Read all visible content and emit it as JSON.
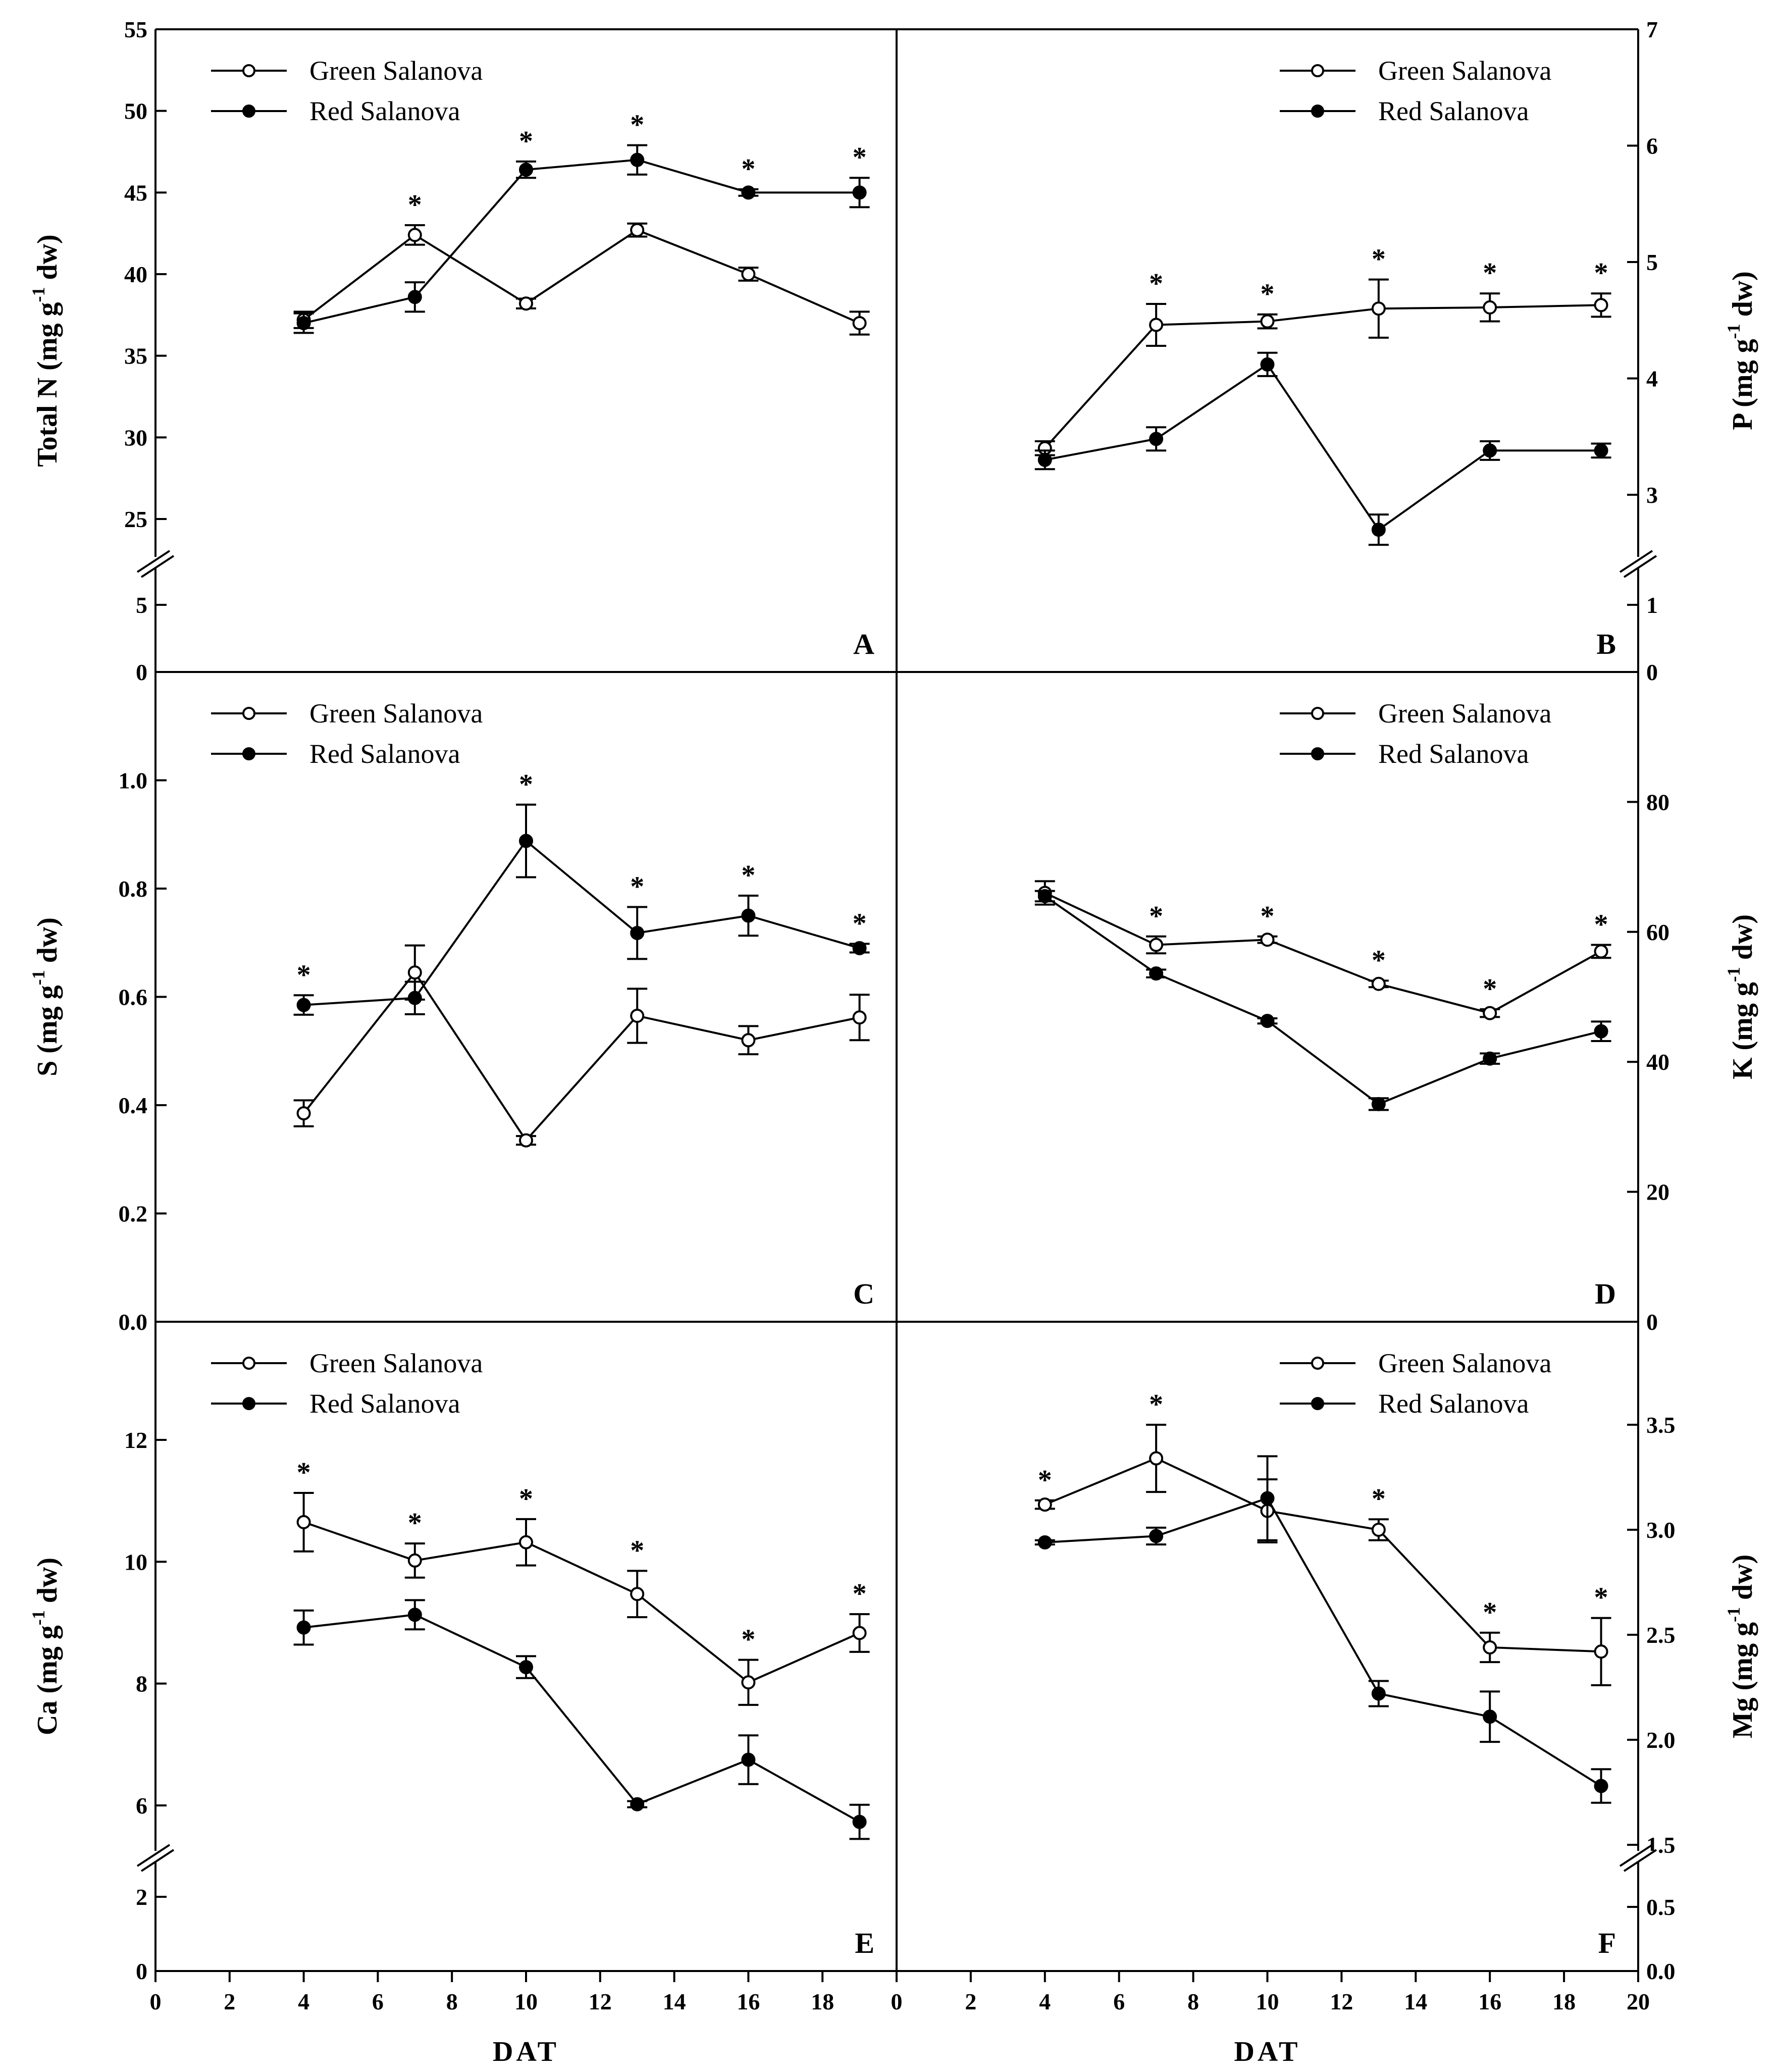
{
  "chart_data": [
    {
      "type": "line",
      "panel": "A",
      "ylabel": "Total N (mg g",
      "ylabel_sup": "-1",
      "ylabel_tail": " dw)",
      "xlabel": "",
      "x": [
        4,
        7,
        10,
        13,
        16,
        19
      ],
      "xlim": [
        0,
        20
      ],
      "ylim": [
        0,
        55
      ],
      "yticks": [
        "0",
        "5",
        "25",
        "30",
        "35",
        "40",
        "45",
        "50",
        "55"
      ],
      "legend": "top-left",
      "series": [
        {
          "name": "Green Salanova",
          "marker": "open",
          "values": [
            37.2,
            42.4,
            38.2,
            42.7,
            40.0,
            37.0
          ],
          "errors": [
            0.5,
            0.6,
            0.3,
            0.4,
            0.4,
            0.7
          ]
        },
        {
          "name": "Red Salanova",
          "marker": "filled",
          "values": [
            37.0,
            38.6,
            46.4,
            47.0,
            45.0,
            45.0
          ],
          "errors": [
            0.6,
            0.9,
            0.5,
            0.9,
            0.2,
            0.9
          ]
        }
      ],
      "significance": [
        false,
        true,
        true,
        true,
        true,
        true
      ]
    },
    {
      "type": "line",
      "panel": "B",
      "ylabel": "P (mg g",
      "ylabel_sup": "-1",
      "ylabel_tail": " dw)",
      "xlabel": "",
      "x": [
        4,
        7,
        10,
        13,
        16,
        19
      ],
      "xlim": [
        0,
        20
      ],
      "ylim": [
        0,
        7
      ],
      "yticks": [
        "0",
        "1",
        "3",
        "4",
        "5",
        "6",
        "7"
      ],
      "legend": "top-right",
      "series": [
        {
          "name": "Green Salanova",
          "marker": "open",
          "values": [
            3.4,
            4.46,
            4.49,
            4.6,
            4.61,
            4.63
          ],
          "errors": [
            0.06,
            0.18,
            0.06,
            0.25,
            0.12,
            0.1
          ]
        },
        {
          "name": "Red Salanova",
          "marker": "filled",
          "values": [
            3.3,
            3.48,
            4.12,
            2.7,
            3.38,
            3.38
          ],
          "errors": [
            0.08,
            0.1,
            0.1,
            0.13,
            0.08,
            0.06
          ]
        }
      ],
      "significance": [
        false,
        true,
        true,
        true,
        true,
        true
      ]
    },
    {
      "type": "line",
      "panel": "C",
      "ylabel": "S (mg g",
      "ylabel_sup": "-1",
      "ylabel_tail": " dw)",
      "xlabel": "",
      "x": [
        4,
        7,
        10,
        13,
        16,
        19
      ],
      "xlim": [
        0,
        20
      ],
      "ylim": [
        0,
        1.2
      ],
      "yticks": [
        "0.0",
        "0.2",
        "0.4",
        "0.6",
        "0.8",
        "1.0"
      ],
      "legend": "top-left",
      "series": [
        {
          "name": "Green Salanova",
          "marker": "open",
          "values": [
            0.385,
            0.645,
            0.335,
            0.565,
            0.52,
            0.562
          ],
          "errors": [
            0.024,
            0.05,
            0.008,
            0.05,
            0.026,
            0.042
          ]
        },
        {
          "name": "Red Salanova",
          "marker": "filled",
          "values": [
            0.585,
            0.598,
            0.888,
            0.718,
            0.75,
            0.69
          ],
          "errors": [
            0.018,
            0.03,
            0.067,
            0.048,
            0.037,
            0.008
          ]
        }
      ],
      "significance": [
        true,
        false,
        true,
        true,
        true,
        true
      ]
    },
    {
      "type": "line",
      "panel": "D",
      "ylabel": "K (mg g",
      "ylabel_sup": "-1",
      "ylabel_tail": " dw)",
      "xlabel": "",
      "x": [
        4,
        7,
        10,
        13,
        16,
        19
      ],
      "xlim": [
        0,
        20
      ],
      "ylim": [
        0,
        100
      ],
      "yticks": [
        "0",
        "20",
        "40",
        "60",
        "80"
      ],
      "legend": "top-right",
      "series": [
        {
          "name": "Green Salanova",
          "marker": "open",
          "values": [
            66.0,
            58.0,
            58.8,
            52.0,
            47.5,
            57.0
          ],
          "errors": [
            1.8,
            1.3,
            0.5,
            0.5,
            0.6,
            1.0
          ]
        },
        {
          "name": "Red Salanova",
          "marker": "filled",
          "values": [
            65.5,
            53.6,
            46.3,
            33.5,
            40.5,
            44.7
          ],
          "errors": [
            0.8,
            0.6,
            0.4,
            0.9,
            0.8,
            1.5
          ]
        }
      ],
      "significance": [
        false,
        true,
        true,
        true,
        true,
        true
      ]
    },
    {
      "type": "line",
      "panel": "E",
      "ylabel": "Ca (mg g",
      "ylabel_sup": "-1",
      "ylabel_tail": " dw)",
      "xlabel": "DAT",
      "x": [
        4,
        7,
        10,
        13,
        16,
        19
      ],
      "xlim": [
        0,
        20
      ],
      "ylim": [
        0,
        14
      ],
      "yticks": [
        "0",
        "2",
        "6",
        "8",
        "10",
        "12"
      ],
      "xticks": [
        "0",
        "2",
        "4",
        "6",
        "8",
        "10",
        "12",
        "14",
        "16",
        "18"
      ],
      "legend": "top-left",
      "series": [
        {
          "name": "Green Salanova",
          "marker": "open",
          "values": [
            10.65,
            10.02,
            10.32,
            9.47,
            8.02,
            8.83
          ],
          "errors": [
            0.48,
            0.28,
            0.38,
            0.38,
            0.37,
            0.31
          ]
        },
        {
          "name": "Red Salanova",
          "marker": "filled",
          "values": [
            8.92,
            9.13,
            8.27,
            6.02,
            6.75,
            5.73
          ],
          "errors": [
            0.28,
            0.24,
            0.18,
            0.05,
            0.4,
            0.28
          ]
        }
      ],
      "significance": [
        true,
        true,
        true,
        true,
        true,
        true
      ]
    },
    {
      "type": "line",
      "panel": "F",
      "ylabel": "Mg (mg g",
      "ylabel_sup": "-1",
      "ylabel_tail": " dw)",
      "xlabel": "DAT",
      "x": [
        4,
        7,
        10,
        13,
        16,
        19
      ],
      "xlim": [
        0,
        20
      ],
      "ylim": [
        0,
        4
      ],
      "yticks": [
        "0.0",
        "0.5",
        "1.5",
        "2.0",
        "2.5",
        "3.0",
        "3.5"
      ],
      "xticks": [
        "0",
        "2",
        "4",
        "6",
        "8",
        "10",
        "12",
        "14",
        "16",
        "18",
        "20"
      ],
      "legend": "top-right",
      "series": [
        {
          "name": "Green Salanova",
          "marker": "open",
          "values": [
            3.12,
            3.34,
            3.09,
            3.0,
            2.44,
            2.42
          ],
          "errors": [
            0.02,
            0.16,
            0.15,
            0.05,
            0.07,
            0.16
          ]
        },
        {
          "name": "Red Salanova",
          "marker": "filled",
          "values": [
            2.94,
            2.97,
            3.15,
            2.22,
            2.11,
            1.78
          ],
          "errors": [
            0.01,
            0.04,
            0.2,
            0.06,
            0.12,
            0.08
          ]
        }
      ],
      "significance": [
        true,
        true,
        false,
        true,
        true,
        true
      ]
    }
  ]
}
